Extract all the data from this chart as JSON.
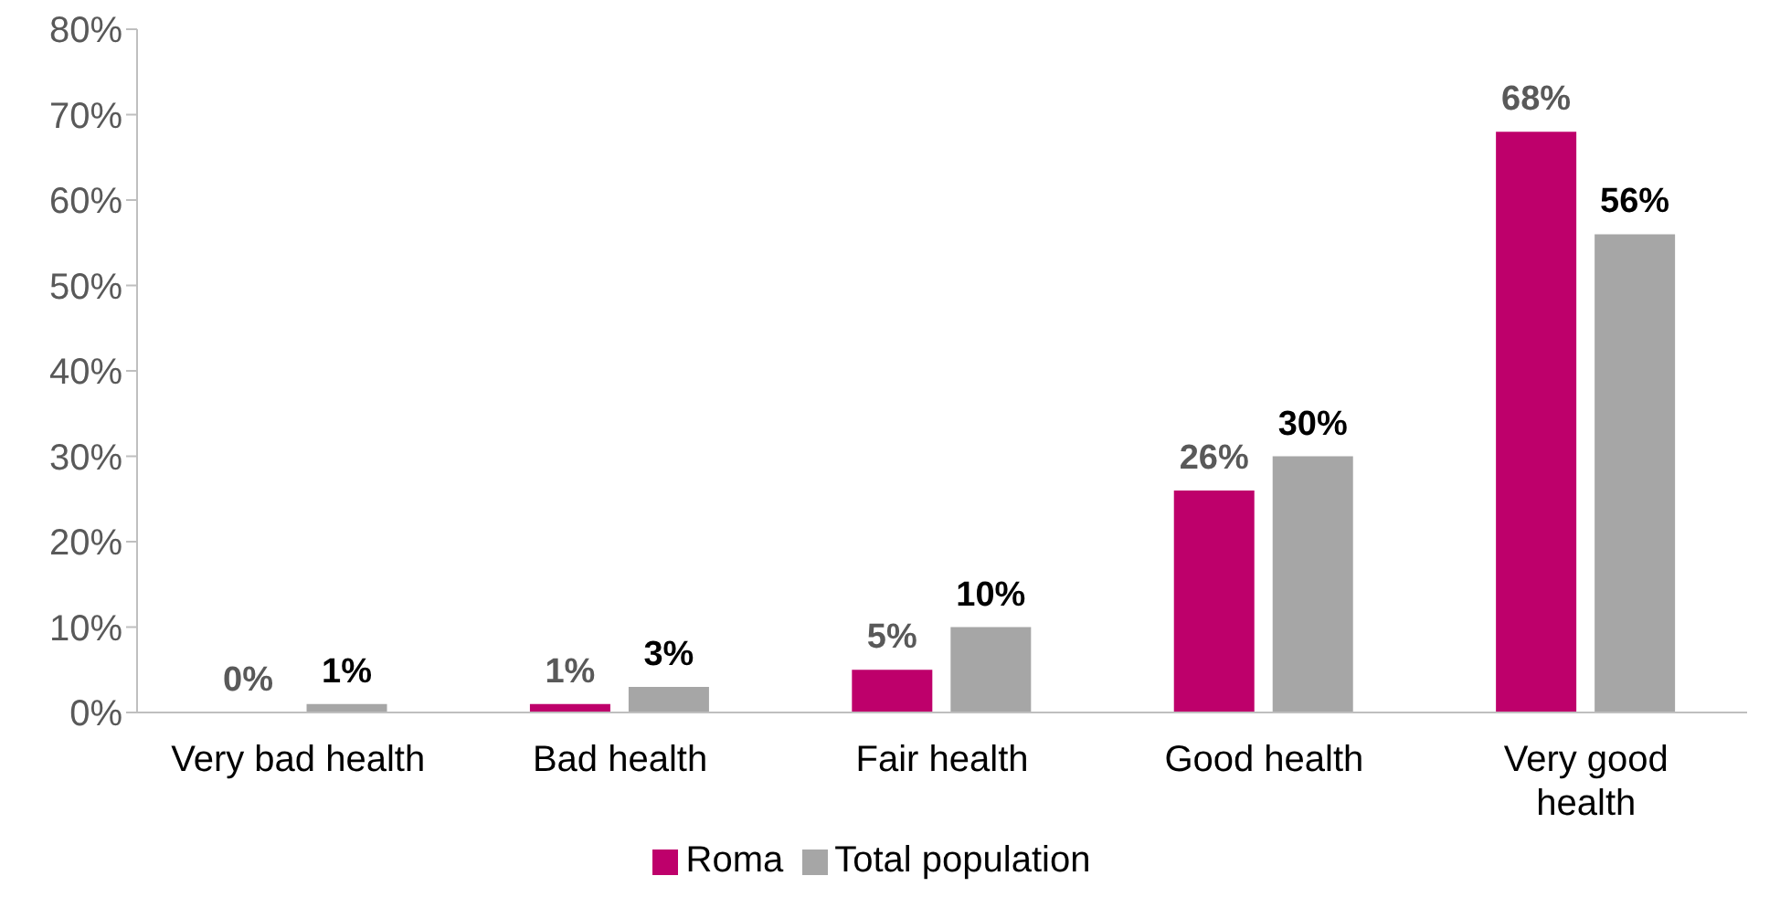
{
  "chart_data": {
    "type": "bar",
    "categories": [
      "Very bad health",
      "Bad health",
      "Fair health",
      "Good health",
      "Very good health"
    ],
    "series": [
      {
        "name": "Roma",
        "color": "#be006b",
        "values": [
          0,
          1,
          5,
          26,
          68
        ],
        "value_labels": [
          "0%",
          "1%",
          "5%",
          "26%",
          "68%"
        ]
      },
      {
        "name": "Total population",
        "color": "#a6a6a6",
        "values": [
          1,
          3,
          10,
          30,
          56
        ],
        "value_labels": [
          "1%",
          "3%",
          "10%",
          "30%",
          "56%"
        ]
      }
    ],
    "ylim": [
      0,
      80
    ],
    "yticks": [
      {
        "value": 0,
        "label": "0%"
      },
      {
        "value": 10,
        "label": "10%"
      },
      {
        "value": 20,
        "label": "20%"
      },
      {
        "value": 30,
        "label": "30%"
      },
      {
        "value": 40,
        "label": "40%"
      },
      {
        "value": 50,
        "label": "50%"
      },
      {
        "value": 60,
        "label": "60%"
      },
      {
        "value": 70,
        "label": "70%"
      },
      {
        "value": 80,
        "label": "80%"
      }
    ],
    "grid": false,
    "legend": "bottom"
  }
}
